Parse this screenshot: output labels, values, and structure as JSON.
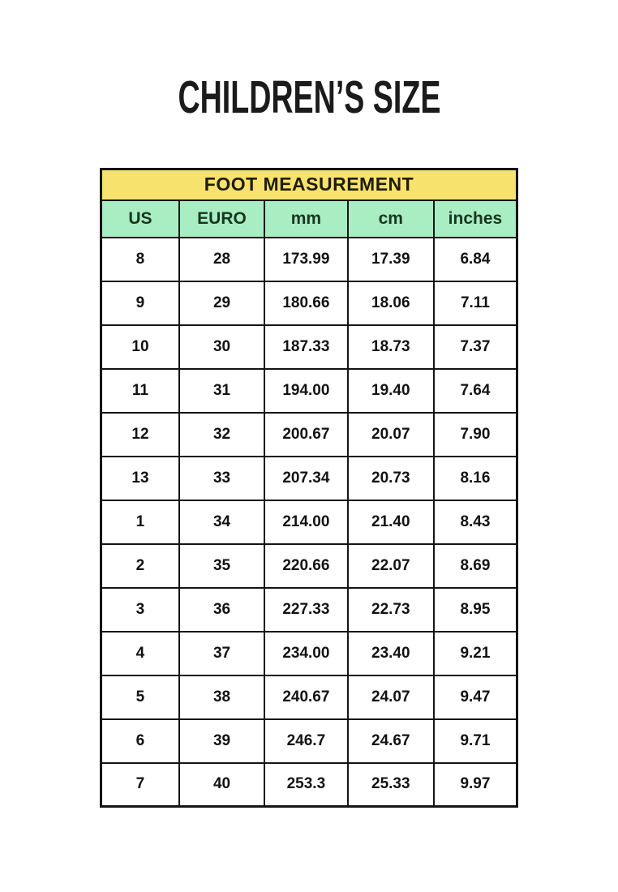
{
  "page": {
    "title": "CHILDREN’S SIZE"
  },
  "table": {
    "header": "FOOT MEASUREMENT",
    "columns": [
      "US",
      "EURO",
      "mm",
      "cm",
      "inches"
    ],
    "rows": [
      [
        "8",
        "28",
        "173.99",
        "17.39",
        "6.84"
      ],
      [
        "9",
        "29",
        "180.66",
        "18.06",
        "7.11"
      ],
      [
        "10",
        "30",
        "187.33",
        "18.73",
        "7.37"
      ],
      [
        "11",
        "31",
        "194.00",
        "19.40",
        "7.64"
      ],
      [
        "12",
        "32",
        "200.67",
        "20.07",
        "7.90"
      ],
      [
        "13",
        "33",
        "207.34",
        "20.73",
        "8.16"
      ],
      [
        "1",
        "34",
        "214.00",
        "21.40",
        "8.43"
      ],
      [
        "2",
        "35",
        "220.66",
        "22.07",
        "8.69"
      ],
      [
        "3",
        "36",
        "227.33",
        "22.73",
        "8.95"
      ],
      [
        "4",
        "37",
        "234.00",
        "23.40",
        "9.21"
      ],
      [
        "5",
        "38",
        "240.67",
        "24.07",
        "9.47"
      ],
      [
        "6",
        "39",
        "246.7",
        "24.67",
        "9.71"
      ],
      [
        "7",
        "40",
        "253.3",
        "25.33",
        "9.97"
      ]
    ],
    "colors": {
      "header_bg": "#F7E26E",
      "header_text": "#201d0c",
      "columns_bg": "#A9EDC2",
      "columns_text": "#17361f",
      "cell_text": "#121212",
      "border": "#141414"
    }
  },
  "chart_data": {
    "type": "table",
    "title": "CHILDREN’S SIZE — FOOT MEASUREMENT",
    "columns": [
      "US",
      "EURO",
      "mm",
      "cm",
      "inches"
    ],
    "rows": [
      [
        "8",
        "28",
        "173.99",
        "17.39",
        "6.84"
      ],
      [
        "9",
        "29",
        "180.66",
        "18.06",
        "7.11"
      ],
      [
        "10",
        "30",
        "187.33",
        "18.73",
        "7.37"
      ],
      [
        "11",
        "31",
        "194.00",
        "19.40",
        "7.64"
      ],
      [
        "12",
        "32",
        "200.67",
        "20.07",
        "7.90"
      ],
      [
        "13",
        "33",
        "207.34",
        "20.73",
        "8.16"
      ],
      [
        "1",
        "34",
        "214.00",
        "21.40",
        "8.43"
      ],
      [
        "2",
        "35",
        "220.66",
        "22.07",
        "8.69"
      ],
      [
        "3",
        "36",
        "227.33",
        "22.73",
        "8.95"
      ],
      [
        "4",
        "37",
        "234.00",
        "23.40",
        "9.21"
      ],
      [
        "5",
        "38",
        "240.67",
        "24.07",
        "9.47"
      ],
      [
        "6",
        "39",
        "246.7",
        "24.67",
        "9.71"
      ],
      [
        "7",
        "40",
        "253.3",
        "25.33",
        "9.97"
      ]
    ]
  }
}
